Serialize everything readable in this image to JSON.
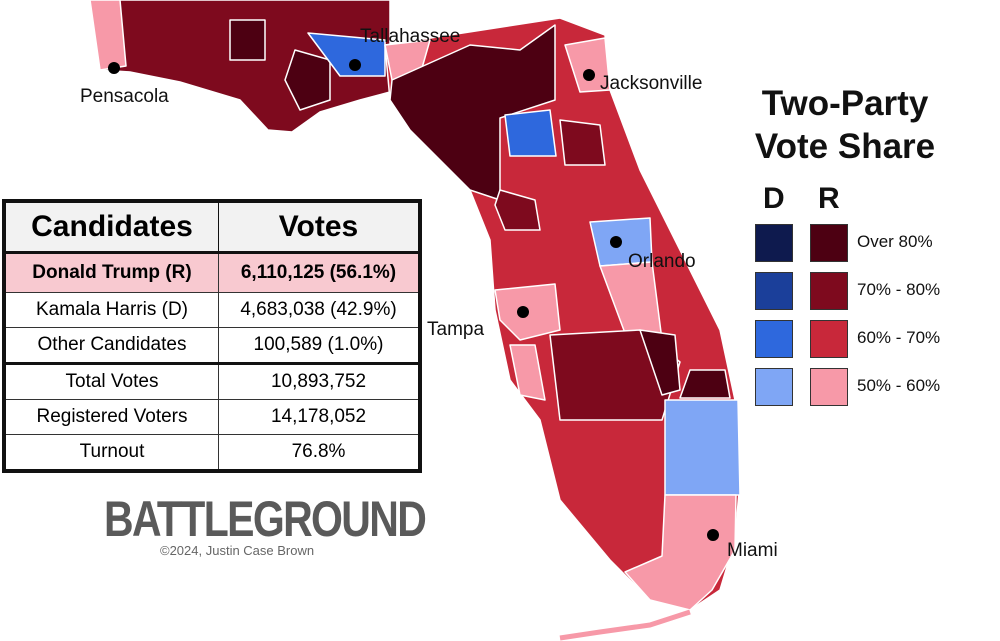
{
  "legend": {
    "title": [
      "Two-Party",
      "Vote Share"
    ],
    "columns": [
      "D",
      "R"
    ],
    "rows": [
      {
        "label": "Over 80%",
        "d_color": "#0e1a4e",
        "r_color": "#4d0012"
      },
      {
        "label": "70% - 80%",
        "d_color": "#1b3f9a",
        "r_color": "#7e0a1e"
      },
      {
        "label": "60% - 70%",
        "d_color": "#2e68dd",
        "r_color": "#c8283a"
      },
      {
        "label": "50% - 60%",
        "d_color": "#7fa6f5",
        "r_color": "#f799a8"
      }
    ]
  },
  "cities": [
    "Pensacola",
    "Tallahassee",
    "Jacksonville",
    "Orlando",
    "Tampa",
    "Miami"
  ],
  "table": {
    "header": [
      "Candidates",
      "Votes"
    ],
    "rows": [
      [
        "Donald Trump (R)",
        "6,110,125 (56.1%)"
      ],
      [
        "Kamala Harris (D)",
        "4,683,038 (42.9%)"
      ],
      [
        "Other Candidates",
        "100,589 (1.0%)"
      ],
      [
        "Total Votes",
        "10,893,752"
      ],
      [
        "Registered Voters",
        "14,178,052"
      ],
      [
        "Turnout",
        "76.8%"
      ]
    ]
  },
  "branding": {
    "logo": "BATTLEGROUND",
    "credit": "©2024, Justin Case Brown"
  }
}
